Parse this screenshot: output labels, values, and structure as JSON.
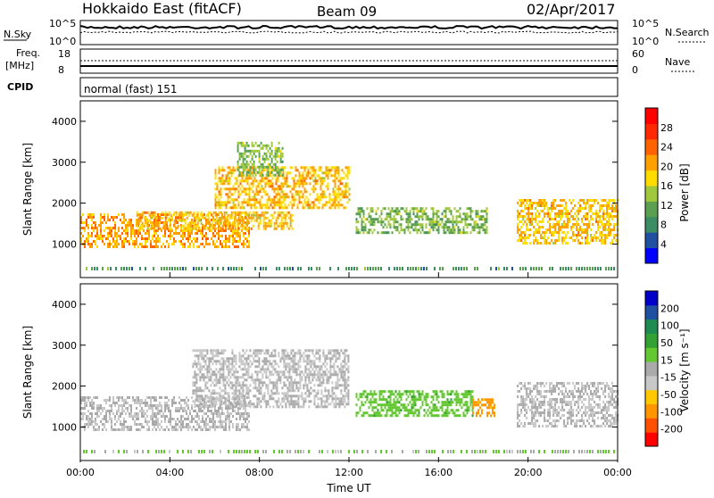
{
  "header": {
    "site": "Hokkaido East (fitACF)",
    "beam": "Beam 09",
    "date": "02/Apr/2017"
  },
  "sky_panel": {
    "left_label": "N.Sky",
    "left_ticks": [
      "10^5",
      "10^0"
    ],
    "right_ticks": [
      "10^5",
      "10^0"
    ],
    "right_label": "N.Search"
  },
  "freq_panel": {
    "left_label_1": "Freq.",
    "left_label_2": "[MHz]",
    "left_ticks": [
      "18",
      "8"
    ],
    "right_ticks": [
      "60",
      "0"
    ],
    "right_label": "Nave"
  },
  "cpid_panel": {
    "label": "CPID",
    "mode_text": "normal (fast) 151"
  },
  "colors": {
    "power": [
      "#0000ff",
      "#2050a0",
      "#3c8c64",
      "#5aa050",
      "#a0c83c",
      "#ffdc00",
      "#ffa000",
      "#ff6400",
      "#ff2800",
      "#ff0000"
    ],
    "velocity": [
      "#ff0000",
      "#ff5000",
      "#ff9600",
      "#ffc800",
      "#c8c8c8",
      "#aaaaaa",
      "#64c832",
      "#32a032",
      "#1e8c50",
      "#2050a0",
      "#0000c8"
    ]
  },
  "chart_data": [
    {
      "type": "heatmap",
      "ylabel": "Slant Range [km]",
      "y_ticks": [
        "1000",
        "2000",
        "3000",
        "4000"
      ],
      "colorbar_label": "Power [dB]",
      "colorbar_ticks": [
        "4",
        "8",
        "12",
        "16",
        "20",
        "24",
        "28"
      ],
      "xlim_hours": [
        0,
        24
      ],
      "ylim_km": [
        180,
        4500
      ],
      "echo_regions": [
        {
          "t_start": 0.0,
          "t_end": 7.5,
          "r_min": 900,
          "r_max": 1750,
          "power_db": 24
        },
        {
          "t_start": 2.5,
          "t_end": 9.5,
          "r_min": 1400,
          "r_max": 1800,
          "power_db": 22
        },
        {
          "t_start": 6.0,
          "t_end": 12.0,
          "r_min": 1900,
          "r_max": 2900,
          "power_db": 22
        },
        {
          "t_start": 7.0,
          "t_end": 9.0,
          "r_min": 2700,
          "r_max": 3500,
          "power_db": 14
        },
        {
          "t_start": 12.3,
          "t_end": 18.2,
          "r_min": 1300,
          "r_max": 1900,
          "power_db": 14
        },
        {
          "t_start": 19.5,
          "t_end": 24.0,
          "r_min": 1000,
          "r_max": 2100,
          "power_db": 22
        }
      ]
    },
    {
      "type": "heatmap",
      "ylabel": "Slant Range [km]",
      "xlabel": "Time UT",
      "x_ticks": [
        "00:00",
        "04:00",
        "08:00",
        "12:00",
        "16:00",
        "20:00",
        "00:00"
      ],
      "y_ticks": [
        "1000",
        "2000",
        "3000",
        "4000"
      ],
      "colorbar_label": "Velocity [m s⁻¹]",
      "colorbar_ticks": [
        "-200",
        "-100",
        "-50",
        "-15",
        "15",
        "50",
        "100",
        "200"
      ],
      "xlim_hours": [
        0,
        24
      ],
      "ylim_km": [
        180,
        4500
      ],
      "echo_regions": [
        {
          "t_start": 0.0,
          "t_end": 7.5,
          "r_min": 900,
          "r_max": 1750,
          "velocity_ms": 0
        },
        {
          "t_start": 5.0,
          "t_end": 12.0,
          "r_min": 1500,
          "r_max": 2900,
          "velocity_ms": 0
        },
        {
          "t_start": 12.3,
          "t_end": 17.5,
          "r_min": 1300,
          "r_max": 1900,
          "velocity_ms": 40
        },
        {
          "t_start": 17.5,
          "t_end": 18.5,
          "r_min": 1300,
          "r_max": 1700,
          "velocity_ms": -60
        },
        {
          "t_start": 19.5,
          "t_end": 24.0,
          "r_min": 1000,
          "r_max": 2100,
          "velocity_ms": 0
        }
      ]
    }
  ]
}
